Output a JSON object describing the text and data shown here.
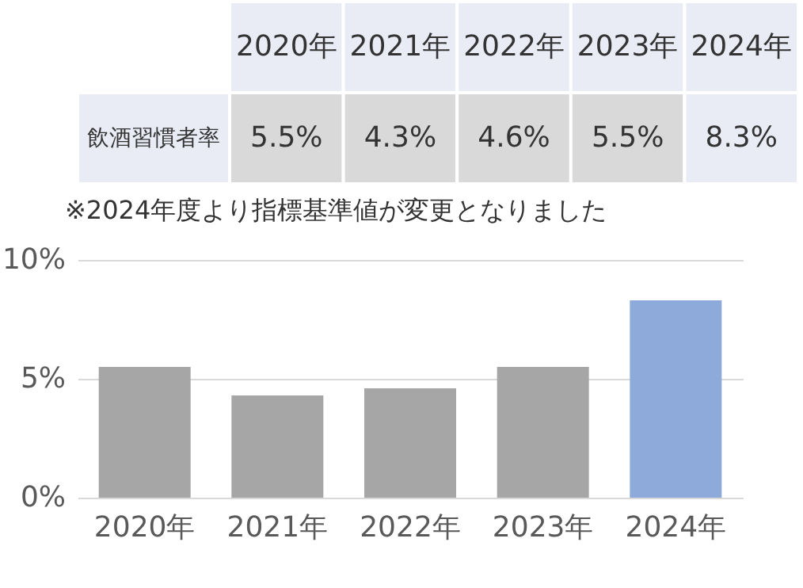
{
  "chart_data": {
    "type": "bar",
    "categories": [
      "2020年",
      "2021年",
      "2022年",
      "2023年",
      "2024年"
    ],
    "series": [
      {
        "name": "飲酒習慣者率",
        "values": [
          5.5,
          4.3,
          4.6,
          5.5,
          8.3
        ]
      }
    ],
    "colors": [
      "#a6a6a6",
      "#a6a6a6",
      "#a6a6a6",
      "#a6a6a6",
      "#8eaadb"
    ],
    "value_labels": [
      "5.5%",
      "4.3%",
      "4.6%",
      "5.5%",
      "8.3%"
    ],
    "annotations": [
      "※2024年度より指標基準値が変更となりました"
    ],
    "ylim": [
      0,
      10
    ],
    "yticks": [
      {
        "value": 0,
        "label": "0%"
      },
      {
        "value": 5,
        "label": "5%"
      },
      {
        "value": 10,
        "label": "10%"
      }
    ],
    "grid": "y"
  }
}
